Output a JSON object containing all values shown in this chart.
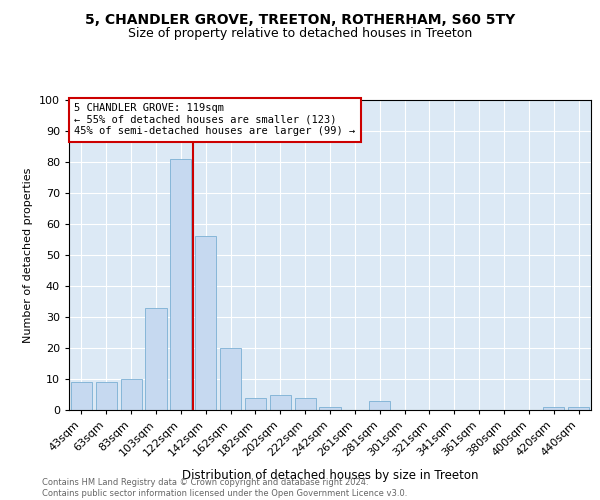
{
  "title": "5, CHANDLER GROVE, TREETON, ROTHERHAM, S60 5TY",
  "subtitle": "Size of property relative to detached houses in Treeton",
  "xlabel": "Distribution of detached houses by size in Treeton",
  "ylabel": "Number of detached properties",
  "footnote": "Contains HM Land Registry data © Crown copyright and database right 2024.\nContains public sector information licensed under the Open Government Licence v3.0.",
  "categories": [
    "43sqm",
    "63sqm",
    "83sqm",
    "103sqm",
    "122sqm",
    "142sqm",
    "162sqm",
    "182sqm",
    "202sqm",
    "222sqm",
    "242sqm",
    "261sqm",
    "281sqm",
    "301sqm",
    "321sqm",
    "341sqm",
    "361sqm",
    "380sqm",
    "400sqm",
    "420sqm",
    "440sqm"
  ],
  "values": [
    9,
    9,
    10,
    33,
    81,
    56,
    20,
    4,
    5,
    4,
    1,
    0,
    3,
    0,
    0,
    0,
    0,
    0,
    0,
    1,
    1
  ],
  "bar_color": "#c6d9f0",
  "bar_edge_color": "#7bafd4",
  "vline_index": 4,
  "vline_color": "#cc0000",
  "annotation_text": "5 CHANDLER GROVE: 119sqm\n← 55% of detached houses are smaller (123)\n45% of semi-detached houses are larger (99) →",
  "annotation_box_facecolor": "#ffffff",
  "annotation_box_edgecolor": "#cc0000",
  "plot_bg_color": "#dce9f5",
  "ylim": [
    0,
    100
  ],
  "yticks": [
    0,
    10,
    20,
    30,
    40,
    50,
    60,
    70,
    80,
    90,
    100
  ],
  "grid_color": "#ffffff",
  "title_fontsize": 10,
  "subtitle_fontsize": 9,
  "ylabel_text": "Number of detached properties"
}
